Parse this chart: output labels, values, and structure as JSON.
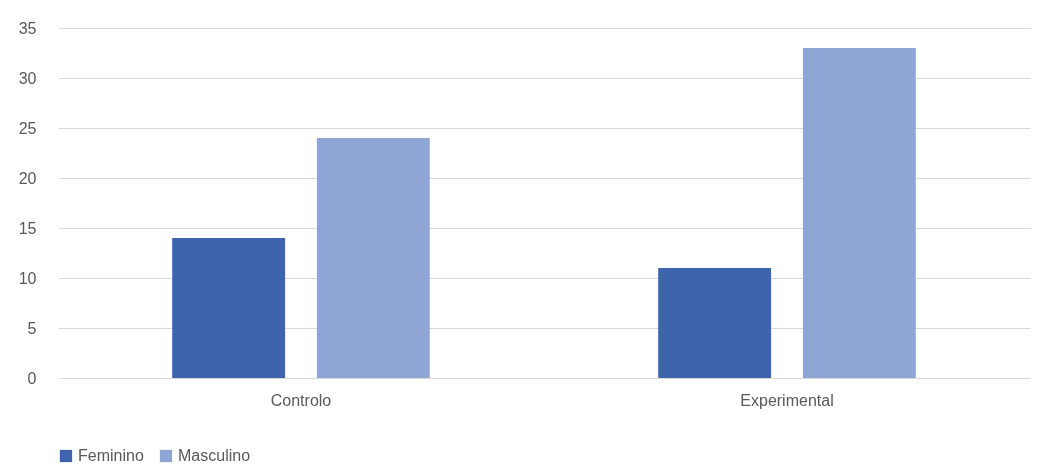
{
  "chart_data": {
    "type": "bar",
    "categories": [
      "Controlo",
      "Experimental"
    ],
    "series": [
      {
        "name": "Feminino",
        "color": "#3d64ad",
        "values": [
          14,
          11
        ]
      },
      {
        "name": "Masculino",
        "color": "#8fa5d6",
        "values": [
          24,
          33
        ]
      }
    ],
    "ylim": [
      0,
      35
    ],
    "yticks": [
      0,
      5,
      10,
      15,
      20,
      25,
      30,
      35
    ],
    "grid": "y",
    "legend": "bottom"
  }
}
